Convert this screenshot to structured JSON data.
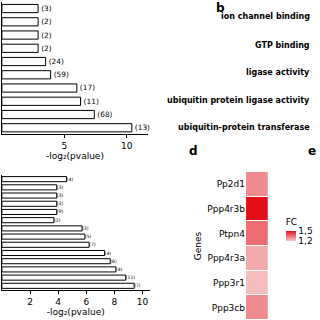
{
  "chart_data": [
    {
      "type": "bar",
      "orientation": "horizontal",
      "xlabel": "-log₂(pvalue)",
      "categories": [
        null,
        null,
        null,
        null,
        null,
        null,
        null,
        null,
        null,
        null
      ],
      "values": [
        2.9,
        2.9,
        2.9,
        2.9,
        3.5,
        3.9,
        6.0,
        6.3,
        7.4,
        10.4
      ],
      "labels": [
        "(3)",
        "(2)",
        "(2)",
        "(2)",
        "(24)",
        "(59)",
        "(17)",
        "(11)",
        "(68)",
        "(13)"
      ],
      "xlim": [
        0,
        11.7
      ],
      "xticks": [
        5,
        10
      ],
      "color": "#ffffff",
      "grid": false,
      "tick_labels": "x"
    },
    {
      "type": "bar",
      "orientation": "horizontal",
      "xlabel": "-log₂(pvalue)",
      "categories": [
        null,
        null,
        null,
        null,
        null,
        null,
        null,
        null,
        null,
        null,
        null,
        null,
        null,
        null
      ],
      "values": [
        4.6,
        3.9,
        3.9,
        3.9,
        3.9,
        3.7,
        5.7,
        5.9,
        6.2,
        7.3,
        7.7,
        8.1,
        8.8,
        9.4
      ],
      "labels": [
        "(4)",
        "(3)",
        "(3)",
        "(3)",
        "(9)",
        "(2)",
        "(3)",
        "(5)",
        "(7)",
        "(4)",
        "(6)",
        "(4)",
        "(11)",
        "(7)"
      ],
      "xlim": [
        0,
        10.5
      ],
      "xticks": [
        2,
        4,
        6,
        8,
        10
      ],
      "color": "#ffffff",
      "grid": false,
      "tick_labels": "x"
    },
    {
      "type": "heatmap",
      "title": "d",
      "ylabel": "Genes",
      "categories": [
        "Pp2d1",
        "Ppp4r3b",
        "Ptpn4",
        "Ppp4r3a",
        "Ppp3r1",
        "Ppp3cb"
      ],
      "values": [
        1.3,
        1.5,
        1.35,
        1.25,
        1.22,
        1.3
      ],
      "color": "#e3101a",
      "colorbar": {
        "title": "FC",
        "range": [
          1.2,
          1.5
        ],
        "ticks": [
          {
            "value": 1.5,
            "label": "1,5"
          },
          {
            "value": 1.2,
            "label": "1,2"
          }
        ]
      },
      "tick_labels": "y"
    }
  ],
  "panel_b": {
    "label": "b",
    "terms": [
      "ion channel binding",
      "GTP binding",
      "ligase activity",
      "ubiquitin protein ligase activity",
      "ubiquitin-protein transferase"
    ]
  },
  "panel_e": {
    "label": "e"
  }
}
